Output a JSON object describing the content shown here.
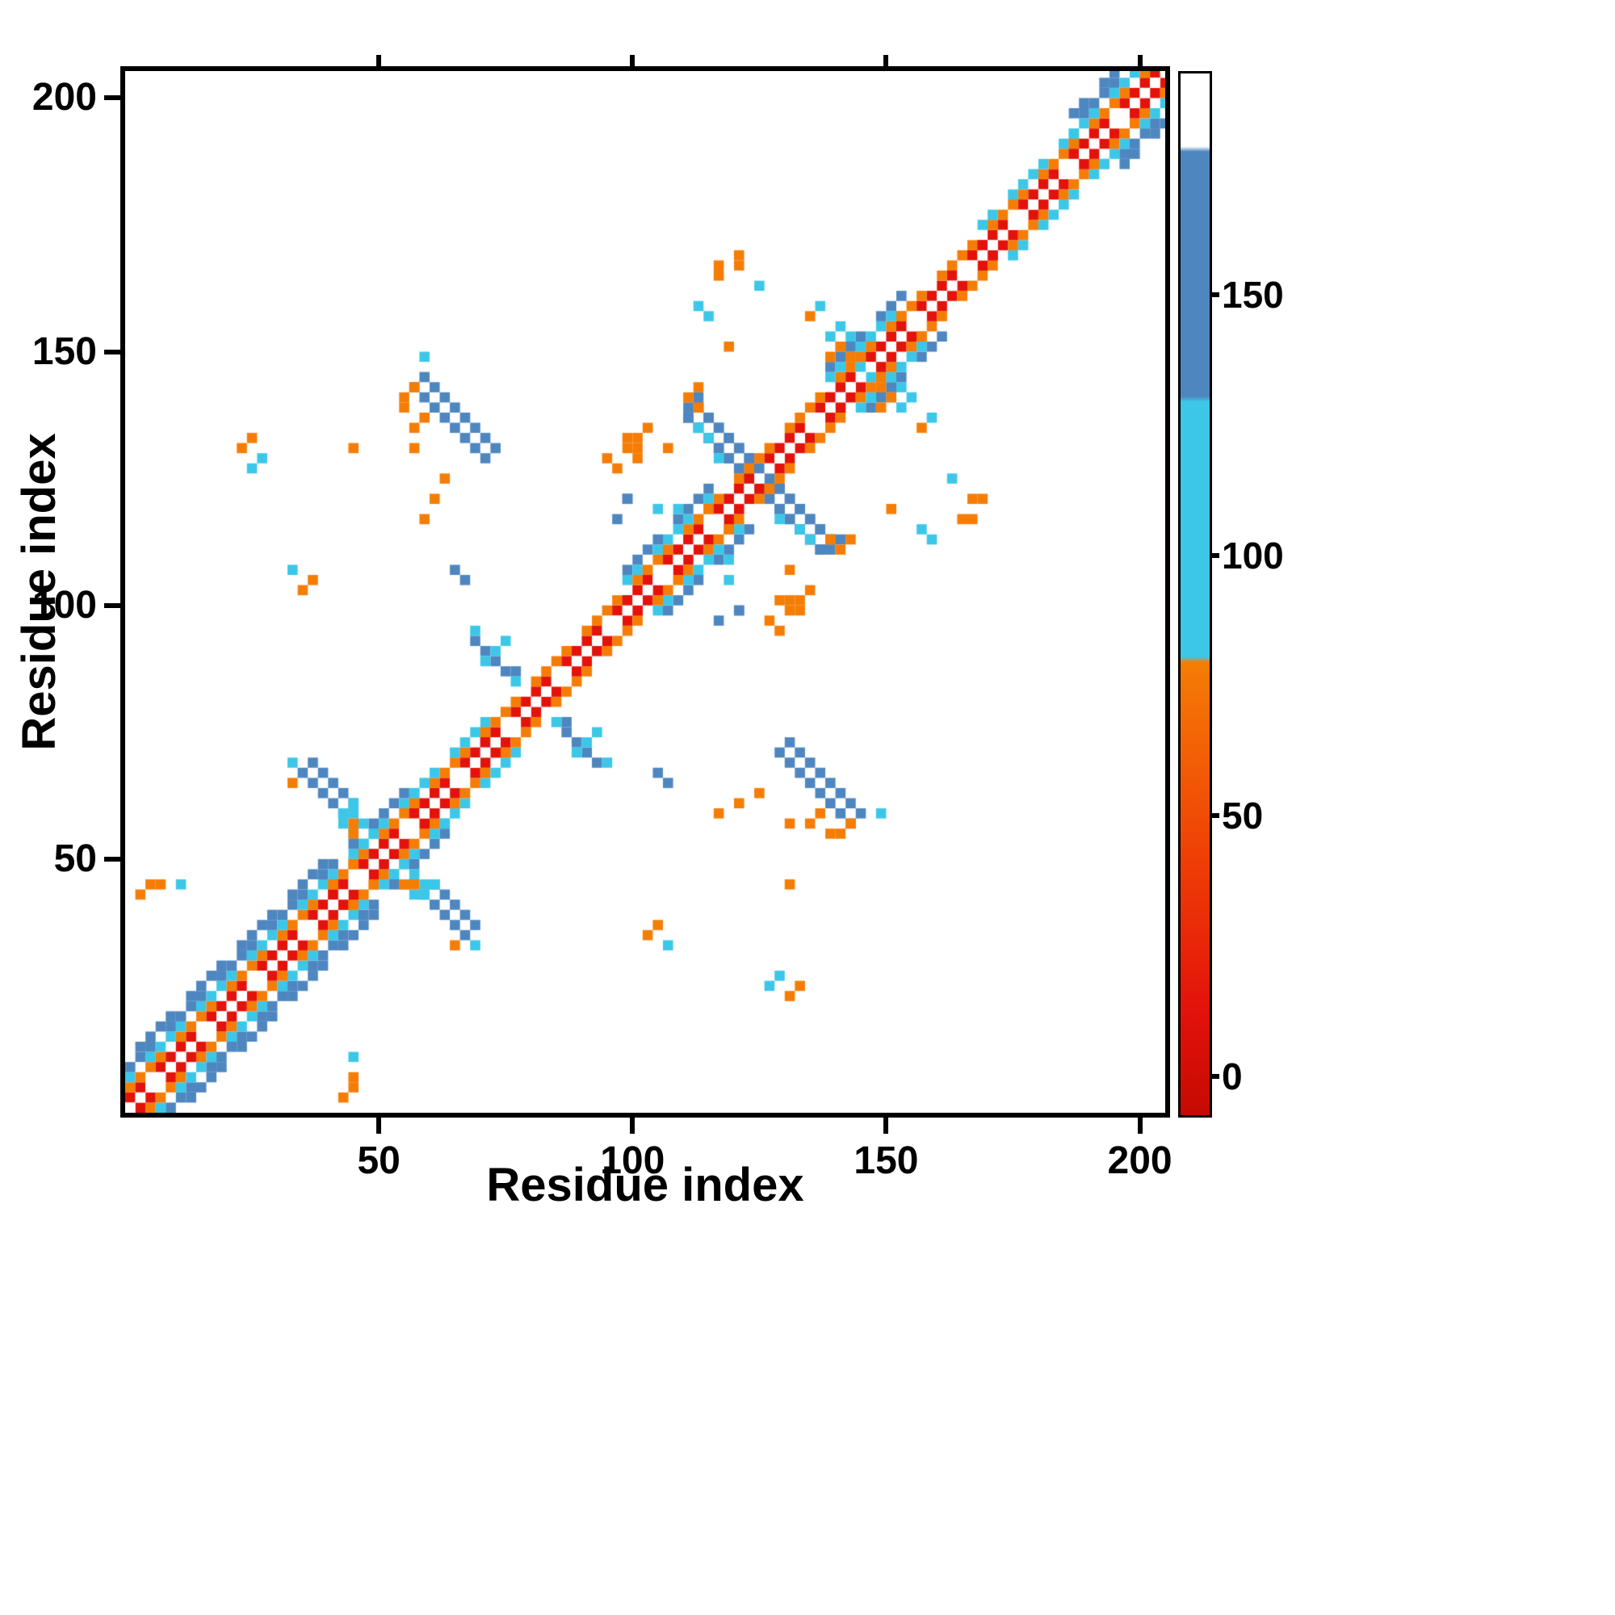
{
  "chart_data": {
    "type": "heatmap",
    "xlabel": "Residue index",
    "ylabel": "Residue index",
    "xlim": [
      0,
      205
    ],
    "ylim": [
      0,
      205
    ],
    "grid": false,
    "xticks": [
      {
        "value": 50,
        "label": "50"
      },
      {
        "value": 100,
        "label": "100"
      },
      {
        "value": 150,
        "label": "150"
      },
      {
        "value": 200,
        "label": "200"
      }
    ],
    "yticks": [
      {
        "value": 50,
        "label": "50"
      },
      {
        "value": 100,
        "label": "100"
      },
      {
        "value": 150,
        "label": "150"
      },
      {
        "value": 200,
        "label": "200"
      }
    ],
    "palette": {
      "red": "#e3120b",
      "orange": "#f57d05",
      "cyan": "#3cc7e8",
      "blue": "#4e86c0"
    },
    "offset_colors": [
      "red",
      "orange",
      "cyan",
      "blue",
      "blue"
    ],
    "diagonal_segments": [
      {
        "start": 0,
        "end": 40,
        "halfwidth": 5
      },
      {
        "start": 40,
        "end": 44,
        "halfwidth": 2
      },
      {
        "start": 44,
        "end": 57,
        "halfwidth": 4
      },
      {
        "start": 57,
        "end": 70,
        "halfwidth": 3
      },
      {
        "start": 70,
        "end": 99,
        "halfwidth": 2
      },
      {
        "start": 99,
        "end": 114,
        "halfwidth": 4
      },
      {
        "start": 114,
        "end": 139,
        "halfwidth": 2
      },
      {
        "start": 139,
        "end": 153,
        "halfwidth": 4
      },
      {
        "start": 153,
        "end": 169,
        "halfwidth": 2
      },
      {
        "start": 169,
        "end": 186,
        "halfwidth": 3
      },
      {
        "start": 186,
        "end": 205,
        "halfwidth": 5
      }
    ],
    "stripes": [
      {
        "from": [
          110,
          138
        ],
        "to": [
          137,
          111
        ],
        "color": "blue",
        "thickness": 2
      },
      {
        "from": [
          56,
          142
        ],
        "to": [
          70,
          128
        ],
        "color": "blue",
        "thickness": 2
      },
      {
        "from": [
          34,
          67
        ],
        "to": [
          42,
          59
        ],
        "color": "blue",
        "thickness": 2
      },
      {
        "from": [
          86,
          76
        ],
        "to": [
          93,
          69
        ],
        "color": "blue",
        "thickness": 1
      },
      {
        "from": [
          42,
          58
        ],
        "to": [
          49,
          51
        ],
        "color": "cyan",
        "thickness": 2
      },
      {
        "from": [
          139,
          152
        ],
        "to": [
          145,
          146
        ],
        "color": "cyan",
        "thickness": 2
      }
    ],
    "point_groups": [
      {
        "color": "orange",
        "points": [
          [
            55,
            141
          ],
          [
            56,
            143
          ],
          [
            54,
            139
          ],
          [
            57,
            131
          ],
          [
            57,
            134
          ],
          [
            58,
            137
          ],
          [
            32,
            65
          ],
          [
            44,
            57
          ],
          [
            45,
            55
          ],
          [
            58,
            117
          ],
          [
            60,
            121
          ],
          [
            63,
            124
          ],
          [
            44,
            130
          ],
          [
            97,
            126
          ],
          [
            98,
            133
          ],
          [
            100,
            130
          ],
          [
            101,
            128
          ],
          [
            103,
            135
          ],
          [
            107,
            131
          ],
          [
            94,
            129
          ],
          [
            98,
            131
          ],
          [
            101,
            132
          ],
          [
            111,
            141
          ],
          [
            112,
            143
          ],
          [
            113,
            139
          ],
          [
            119,
            150
          ],
          [
            134,
            156
          ],
          [
            120,
            167
          ],
          [
            121,
            169
          ],
          [
            116,
            164
          ],
          [
            116,
            166
          ],
          [
            36,
            104
          ],
          [
            34,
            102
          ],
          [
            23,
            131
          ],
          [
            24,
            133
          ],
          [
            4,
            45
          ],
          [
            7,
            44
          ],
          [
            3,
            43
          ],
          [
            138,
            148
          ],
          [
            140,
            151
          ],
          [
            143,
            149
          ]
        ]
      },
      {
        "color": "cyan",
        "points": [
          [
            33,
            68
          ],
          [
            43,
            58
          ],
          [
            85,
            77
          ],
          [
            94,
            68
          ],
          [
            32,
            106
          ],
          [
            25,
            127
          ],
          [
            27,
            129
          ],
          [
            11,
            44
          ],
          [
            59,
            148
          ],
          [
            113,
            159
          ],
          [
            115,
            157
          ],
          [
            124,
            163
          ],
          [
            137,
            159
          ],
          [
            105,
            119
          ],
          [
            108,
            119
          ],
          [
            70,
            88
          ],
          [
            72,
            90
          ],
          [
            75,
            92
          ],
          [
            114,
            132
          ],
          [
            116,
            129
          ],
          [
            112,
            135
          ]
        ]
      },
      {
        "color": "blue",
        "points": [
          [
            96,
            117
          ],
          [
            98,
            120
          ],
          [
            99,
            121
          ],
          [
            64,
            107
          ],
          [
            66,
            105
          ]
        ]
      }
    ],
    "colorbar": {
      "vmin": -7,
      "vmax": 193,
      "ticks": [
        {
          "value": 0,
          "label": "0"
        },
        {
          "value": 50,
          "label": "50"
        },
        {
          "value": 100,
          "label": "100"
        },
        {
          "value": 150,
          "label": "150"
        }
      ],
      "stops": [
        {
          "pos": "0%",
          "color": "#c50a02"
        },
        {
          "pos": "10%",
          "color": "#e3120b"
        },
        {
          "pos": "25%",
          "color": "#ef4005"
        },
        {
          "pos": "43.5%",
          "color": "#f57d05"
        },
        {
          "pos": "44%",
          "color": "#3cc7e8"
        },
        {
          "pos": "68.5%",
          "color": "#3cc7e8"
        },
        {
          "pos": "69%",
          "color": "#4e86c0"
        },
        {
          "pos": "92.5%",
          "color": "#4e86c0"
        },
        {
          "pos": "93%",
          "color": "#ffffff"
        },
        {
          "pos": "100%",
          "color": "#ffffff"
        }
      ]
    }
  }
}
